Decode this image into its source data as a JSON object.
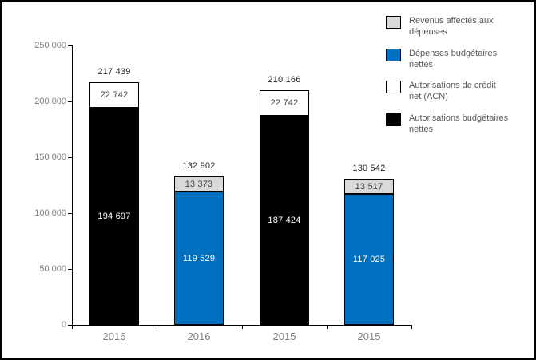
{
  "chart_data": {
    "type": "bar",
    "stacked": true,
    "title": "",
    "xlabel": "",
    "ylabel": "",
    "ylim": [
      0,
      250000
    ],
    "grid": false,
    "y_ticks": [
      {
        "label": "0",
        "value": 0
      },
      {
        "label": "50 000",
        "value": 50000
      },
      {
        "label": "100 000",
        "value": 100000
      },
      {
        "label": "150 000",
        "value": 150000
      },
      {
        "label": "200 000",
        "value": 200000
      },
      {
        "label": "250 000",
        "value": 250000
      }
    ],
    "categories": [
      "2016",
      "2016",
      "2015",
      "2015"
    ],
    "bars": [
      {
        "category": "2016",
        "total_value": 217439,
        "total_label": "217 439",
        "segments": [
          {
            "series": "Autorisations budgétaires nettes",
            "value": 194697,
            "label": "194 697",
            "color": "#000000",
            "label_color": "#ffffff"
          },
          {
            "series": "Autorisations de crédit net (ACN)",
            "value": 22742,
            "label": "22 742",
            "color": "#ffffff",
            "label_color": "#3f3f3f"
          }
        ]
      },
      {
        "category": "2016",
        "total_value": 132902,
        "total_label": "132 902",
        "segments": [
          {
            "series": "Dépenses budgétaires nettes",
            "value": 119529,
            "label": "119 529",
            "color": "#0070c0",
            "label_color": "#ffffff"
          },
          {
            "series": "Revenus affectés aux dépenses",
            "value": 13373,
            "label": "13 373",
            "color": "#d9d9d9",
            "label_color": "#3f3f3f"
          }
        ]
      },
      {
        "category": "2015",
        "total_value": 210166,
        "total_label": "210 166",
        "segments": [
          {
            "series": "Autorisations budgétaires nettes",
            "value": 187424,
            "label": "187 424",
            "color": "#000000",
            "label_color": "#ffffff"
          },
          {
            "series": "Autorisations de crédit net (ACN)",
            "value": 22742,
            "label": "22 742",
            "color": "#ffffff",
            "label_color": "#3f3f3f"
          }
        ]
      },
      {
        "category": "2015",
        "total_value": 130542,
        "total_label": "130 542",
        "segments": [
          {
            "series": "Dépenses budgétaires nettes",
            "value": 117025,
            "label": "117 025",
            "color": "#0070c0",
            "label_color": "#ffffff"
          },
          {
            "series": "Revenus affectés aux dépenses",
            "value": 13517,
            "label": "13 517",
            "color": "#d9d9d9",
            "label_color": "#3f3f3f"
          }
        ]
      }
    ],
    "legend": {
      "position": "top-right",
      "items": [
        {
          "label": "Revenus affectés aux dépenses",
          "color": "#d9d9d9"
        },
        {
          "label": "Dépenses budgétaires nettes",
          "color": "#0070c0"
        },
        {
          "label": "Autorisations de crédit net (ACN)",
          "color": "#ffffff"
        },
        {
          "label": "Autorisations budgétaires nettes",
          "color": "#000000"
        }
      ]
    },
    "colors": {
      "axis": "#000000",
      "tick_label": "#808080",
      "total_label": "#262626",
      "legend_text": "#595959"
    }
  }
}
